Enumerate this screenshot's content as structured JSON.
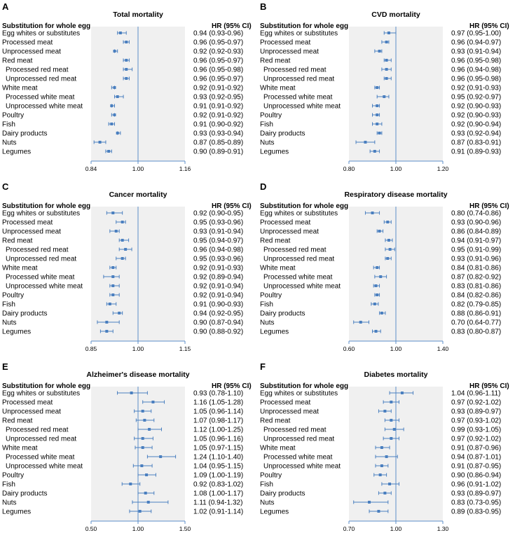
{
  "figure": {
    "column_header_left": "Substitution for whole egg",
    "column_header_right": "HR (95% CI)",
    "rows": [
      "Egg whites or substitutes",
      "Processed meat",
      "Unprocessed meat",
      "Red meat",
      "Processed red meat",
      "Unprocessed red meat",
      "White meat",
      "Processed white meat",
      "Unprocessed white meat",
      "Poultry",
      "Fish",
      "Dairy products",
      "Nuts",
      "Legumes"
    ],
    "colors": {
      "marker": "#4a7fbf",
      "shade": "#f0f0f0",
      "axis": "#5b8ec9"
    }
  },
  "chart_data": [
    {
      "type": "forest",
      "letter": "A",
      "title": "Total mortality",
      "xlim": [
        0.84,
        1.16
      ],
      "ticks": [
        "0.84",
        "1.00",
        "1.16"
      ],
      "reference": 1.0,
      "hr": [
        0.94,
        0.96,
        0.92,
        0.96,
        0.96,
        0.96,
        0.92,
        0.93,
        0.91,
        0.92,
        0.91,
        0.93,
        0.87,
        0.9
      ],
      "lower": [
        0.93,
        0.95,
        0.92,
        0.95,
        0.95,
        0.95,
        0.91,
        0.92,
        0.91,
        0.91,
        0.9,
        0.93,
        0.85,
        0.89
      ],
      "upper": [
        0.96,
        0.97,
        0.93,
        0.97,
        0.98,
        0.97,
        0.92,
        0.95,
        0.92,
        0.92,
        0.92,
        0.94,
        0.89,
        0.91
      ],
      "hr_text": [
        "0.94 (0.93-0.96)",
        "0.96 (0.95-0.97)",
        "0.92 (0.92-0.93)",
        "0.96 (0.95-0.97)",
        "0.96 (0.95-0.98)",
        "0.96 (0.95-0.97)",
        "0.92 (0.91-0.92)",
        "0.93 (0.92-0.95)",
        "0.91 (0.91-0.92)",
        "0.92 (0.91-0.92)",
        "0.91 (0.90-0.92)",
        "0.93 (0.93-0.94)",
        "0.87 (0.85-0.89)",
        "0.90 (0.89-0.91)"
      ]
    },
    {
      "type": "forest",
      "letter": "B",
      "title": "CVD mortality",
      "xlim": [
        0.8,
        1.2
      ],
      "ticks": [
        "0.80",
        "1.00",
        "1.20"
      ],
      "reference": 1.0,
      "hr": [
        0.97,
        0.96,
        0.93,
        0.96,
        0.96,
        0.96,
        0.92,
        0.95,
        0.92,
        0.92,
        0.92,
        0.93,
        0.87,
        0.91
      ],
      "lower": [
        0.95,
        0.94,
        0.91,
        0.95,
        0.94,
        0.95,
        0.91,
        0.92,
        0.9,
        0.9,
        0.9,
        0.92,
        0.83,
        0.89
      ],
      "upper": [
        1.0,
        0.97,
        0.94,
        0.98,
        0.98,
        0.98,
        0.93,
        0.97,
        0.93,
        0.93,
        0.94,
        0.94,
        0.91,
        0.93
      ],
      "hr_text": [
        "0.97 (0.95-1.00)",
        "0.96 (0.94-0.97)",
        "0.93 (0.91-0.94)",
        "0.96 (0.95-0.98)",
        "0.96 (0.94-0.98)",
        "0.96 (0.95-0.98)",
        "0.92 (0.91-0.93)",
        "0.95 (0.92-0.97)",
        "0.92 (0.90-0.93)",
        "0.92 (0.90-0.93)",
        "0.92 (0.90-0.94)",
        "0.93 (0.92-0.94)",
        "0.87 (0.83-0.91)",
        "0.91 (0.89-0.93)"
      ]
    },
    {
      "type": "forest",
      "letter": "C",
      "title": "Cancer mortality",
      "xlim": [
        0.85,
        1.15
      ],
      "ticks": [
        "0.85",
        "1.00",
        "1.15"
      ],
      "reference": 1.0,
      "hr": [
        0.92,
        0.95,
        0.93,
        0.95,
        0.96,
        0.95,
        0.92,
        0.92,
        0.92,
        0.92,
        0.91,
        0.94,
        0.9,
        0.9
      ],
      "lower": [
        0.9,
        0.93,
        0.91,
        0.94,
        0.94,
        0.93,
        0.91,
        0.89,
        0.91,
        0.91,
        0.9,
        0.92,
        0.87,
        0.88
      ],
      "upper": [
        0.95,
        0.96,
        0.94,
        0.97,
        0.98,
        0.96,
        0.93,
        0.94,
        0.94,
        0.94,
        0.93,
        0.95,
        0.94,
        0.92
      ],
      "hr_text": [
        "0.92 (0.90-0.95)",
        "0.95 (0.93-0.96)",
        "0.93 (0.91-0.94)",
        "0.95 (0.94-0.97)",
        "0.96 (0.94-0.98)",
        "0.95 (0.93-0.96)",
        "0.92 (0.91-0.93)",
        "0.92 (0.89-0.94)",
        "0.92 (0.91-0.94)",
        "0.92 (0.91-0.94)",
        "0.91 (0.90-0.93)",
        "0.94 (0.92-0.95)",
        "0.90 (0.87-0.94)",
        "0.90 (0.88-0.92)"
      ]
    },
    {
      "type": "forest",
      "letter": "D",
      "title": "Respiratory disease mortality",
      "xlim": [
        0.6,
        1.4
      ],
      "ticks": [
        "0.60",
        "1.00",
        "1.40"
      ],
      "reference": 1.0,
      "hr": [
        0.8,
        0.93,
        0.86,
        0.94,
        0.95,
        0.93,
        0.84,
        0.87,
        0.83,
        0.84,
        0.82,
        0.88,
        0.7,
        0.83
      ],
      "lower": [
        0.74,
        0.9,
        0.84,
        0.91,
        0.91,
        0.91,
        0.81,
        0.82,
        0.81,
        0.82,
        0.79,
        0.86,
        0.64,
        0.8
      ],
      "upper": [
        0.86,
        0.96,
        0.89,
        0.97,
        0.99,
        0.96,
        0.86,
        0.92,
        0.86,
        0.86,
        0.85,
        0.91,
        0.77,
        0.87
      ],
      "hr_text": [
        "0.80 (0.74-0.86)",
        "0.93 (0.90-0.96)",
        "0.86 (0.84-0.89)",
        "0.94 (0.91-0.97)",
        "0.95 (0.91-0.99)",
        "0.93 (0.91-0.96)",
        "0.84 (0.81-0.86)",
        "0.87 (0.82-0.92)",
        "0.83 (0.81-0.86)",
        "0.84 (0.82-0.86)",
        "0.82 (0.79-0.85)",
        "0.88 (0.86-0.91)",
        "0.70 (0.64-0.77)",
        "0.83 (0.80-0.87)"
      ]
    },
    {
      "type": "forest",
      "letter": "E",
      "title": "Alzheimer's disease mortality",
      "xlim": [
        0.5,
        1.5
      ],
      "ticks": [
        "0.50",
        "1.00",
        "1.50"
      ],
      "reference": 1.0,
      "hr": [
        0.93,
        1.16,
        1.05,
        1.07,
        1.12,
        1.05,
        1.05,
        1.24,
        1.04,
        1.09,
        0.92,
        1.08,
        1.11,
        1.02
      ],
      "lower": [
        0.78,
        1.05,
        0.96,
        0.98,
        1.0,
        0.96,
        0.97,
        1.1,
        0.95,
        1.0,
        0.83,
        1.0,
        0.94,
        0.91
      ],
      "upper": [
        1.1,
        1.28,
        1.14,
        1.17,
        1.25,
        1.16,
        1.15,
        1.4,
        1.15,
        1.19,
        1.02,
        1.17,
        1.32,
        1.14
      ],
      "hr_text": [
        "0.93 (0.78-1.10)",
        "1.16 (1.05-1.28)",
        "1.05 (0.96-1.14)",
        "1.07 (0.98-1.17)",
        "1.12 (1.00-1.25)",
        "1.05 (0.96-1.16)",
        "1.05 (0.97-1.15)",
        "1.24 (1.10-1.40)",
        "1.04 (0.95-1.15)",
        "1.09 (1.00-1.19)",
        "0.92 (0.83-1.02)",
        "1.08 (1.00-1.17)",
        "1.11 (0.94-1.32)",
        "1.02 (0.91-1.14)"
      ]
    },
    {
      "type": "forest",
      "letter": "F",
      "title": "Diabetes mortality",
      "xlim": [
        0.7,
        1.3
      ],
      "ticks": [
        "0.70",
        "1.00",
        "1.30"
      ],
      "reference": 1.0,
      "hr": [
        1.04,
        0.97,
        0.93,
        0.97,
        0.99,
        0.97,
        0.91,
        0.94,
        0.91,
        0.9,
        0.96,
        0.93,
        0.83,
        0.89
      ],
      "lower": [
        0.96,
        0.92,
        0.89,
        0.93,
        0.93,
        0.92,
        0.87,
        0.87,
        0.87,
        0.86,
        0.91,
        0.89,
        0.73,
        0.83
      ],
      "upper": [
        1.11,
        1.02,
        0.97,
        1.02,
        1.05,
        1.02,
        0.96,
        1.01,
        0.95,
        0.94,
        1.02,
        0.97,
        0.95,
        0.95
      ],
      "hr_text": [
        "1.04 (0.96-1.11)",
        "0.97 (0.92-1.02)",
        "0.93 (0.89-0.97)",
        "0.97 (0.93-1.02)",
        "0.99 (0.93-1.05)",
        "0.97 (0.92-1.02)",
        "0.91 (0.87-0.96)",
        "0.94 (0.87-1.01)",
        "0.91 (0.87-0.95)",
        "0.90 (0.86-0.94)",
        "0.96 (0.91-1.02)",
        "0.93 (0.89-0.97)",
        "0.83 (0.73-0.95)",
        "0.89 (0.83-0.95)"
      ]
    }
  ]
}
